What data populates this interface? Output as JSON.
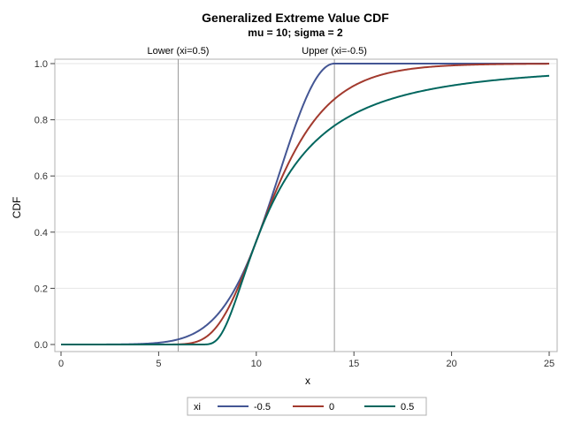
{
  "chart_data": {
    "type": "line",
    "title": "Generalized Extreme Value CDF",
    "subtitle": "mu = 10; sigma = 2",
    "xlabel": "x",
    "ylabel": "CDF",
    "xlim": [
      0,
      25
    ],
    "ylim": [
      0,
      1
    ],
    "xticks": [
      0,
      5,
      10,
      15,
      20,
      25
    ],
    "yticks": [
      0.0,
      0.2,
      0.4,
      0.6,
      0.8,
      1.0
    ],
    "ytick_labels": [
      "0.0",
      "0.2",
      "0.4",
      "0.6",
      "0.8",
      "1.0"
    ],
    "grid": "horizontal",
    "mu": 10,
    "sigma": 2,
    "reference_lines": [
      {
        "x": 6,
        "label": "Lower (xi=0.5)"
      },
      {
        "x": 14,
        "label": "Upper (xi=-0.5)"
      }
    ],
    "legend": {
      "title": "xi",
      "placement": "bottom"
    },
    "series": [
      {
        "name": "-0.5",
        "xi": -0.5,
        "color": "#445694"
      },
      {
        "name": "0",
        "xi": 0,
        "color": "#A23A2E"
      },
      {
        "name": "0.5",
        "xi": 0.5,
        "color": "#01665E"
      }
    ]
  }
}
